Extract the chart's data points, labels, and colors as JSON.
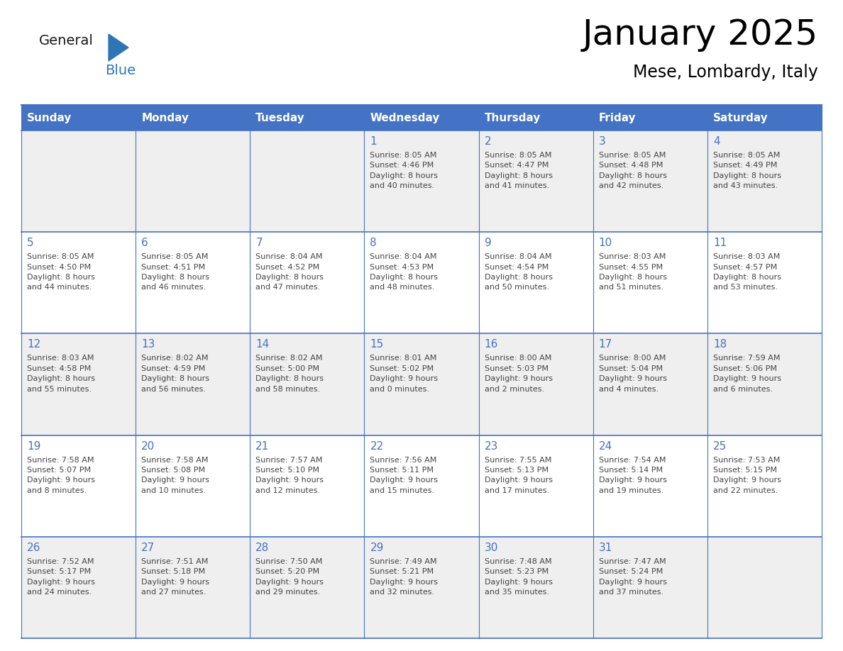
{
  "title": "January 2025",
  "subtitle": "Mese, Lombardy, Italy",
  "days_of_week": [
    "Sunday",
    "Monday",
    "Tuesday",
    "Wednesday",
    "Thursday",
    "Friday",
    "Saturday"
  ],
  "header_bg": "#4472C4",
  "header_text": "#FFFFFF",
  "row_bg_light": "#EFEFEF",
  "row_bg_white": "#FFFFFF",
  "border_color": "#4472C4",
  "day_number_color": "#4472C4",
  "text_color": "#444444",
  "logo_general_color": "#1a1a1a",
  "logo_blue_color": "#2E75B6",
  "weeks": [
    [
      {
        "day": null,
        "text": ""
      },
      {
        "day": null,
        "text": ""
      },
      {
        "day": null,
        "text": ""
      },
      {
        "day": 1,
        "text": "Sunrise: 8:05 AM\nSunset: 4:46 PM\nDaylight: 8 hours\nand 40 minutes."
      },
      {
        "day": 2,
        "text": "Sunrise: 8:05 AM\nSunset: 4:47 PM\nDaylight: 8 hours\nand 41 minutes."
      },
      {
        "day": 3,
        "text": "Sunrise: 8:05 AM\nSunset: 4:48 PM\nDaylight: 8 hours\nand 42 minutes."
      },
      {
        "day": 4,
        "text": "Sunrise: 8:05 AM\nSunset: 4:49 PM\nDaylight: 8 hours\nand 43 minutes."
      }
    ],
    [
      {
        "day": 5,
        "text": "Sunrise: 8:05 AM\nSunset: 4:50 PM\nDaylight: 8 hours\nand 44 minutes."
      },
      {
        "day": 6,
        "text": "Sunrise: 8:05 AM\nSunset: 4:51 PM\nDaylight: 8 hours\nand 46 minutes."
      },
      {
        "day": 7,
        "text": "Sunrise: 8:04 AM\nSunset: 4:52 PM\nDaylight: 8 hours\nand 47 minutes."
      },
      {
        "day": 8,
        "text": "Sunrise: 8:04 AM\nSunset: 4:53 PM\nDaylight: 8 hours\nand 48 minutes."
      },
      {
        "day": 9,
        "text": "Sunrise: 8:04 AM\nSunset: 4:54 PM\nDaylight: 8 hours\nand 50 minutes."
      },
      {
        "day": 10,
        "text": "Sunrise: 8:03 AM\nSunset: 4:55 PM\nDaylight: 8 hours\nand 51 minutes."
      },
      {
        "day": 11,
        "text": "Sunrise: 8:03 AM\nSunset: 4:57 PM\nDaylight: 8 hours\nand 53 minutes."
      }
    ],
    [
      {
        "day": 12,
        "text": "Sunrise: 8:03 AM\nSunset: 4:58 PM\nDaylight: 8 hours\nand 55 minutes."
      },
      {
        "day": 13,
        "text": "Sunrise: 8:02 AM\nSunset: 4:59 PM\nDaylight: 8 hours\nand 56 minutes."
      },
      {
        "day": 14,
        "text": "Sunrise: 8:02 AM\nSunset: 5:00 PM\nDaylight: 8 hours\nand 58 minutes."
      },
      {
        "day": 15,
        "text": "Sunrise: 8:01 AM\nSunset: 5:02 PM\nDaylight: 9 hours\nand 0 minutes."
      },
      {
        "day": 16,
        "text": "Sunrise: 8:00 AM\nSunset: 5:03 PM\nDaylight: 9 hours\nand 2 minutes."
      },
      {
        "day": 17,
        "text": "Sunrise: 8:00 AM\nSunset: 5:04 PM\nDaylight: 9 hours\nand 4 minutes."
      },
      {
        "day": 18,
        "text": "Sunrise: 7:59 AM\nSunset: 5:06 PM\nDaylight: 9 hours\nand 6 minutes."
      }
    ],
    [
      {
        "day": 19,
        "text": "Sunrise: 7:58 AM\nSunset: 5:07 PM\nDaylight: 9 hours\nand 8 minutes."
      },
      {
        "day": 20,
        "text": "Sunrise: 7:58 AM\nSunset: 5:08 PM\nDaylight: 9 hours\nand 10 minutes."
      },
      {
        "day": 21,
        "text": "Sunrise: 7:57 AM\nSunset: 5:10 PM\nDaylight: 9 hours\nand 12 minutes."
      },
      {
        "day": 22,
        "text": "Sunrise: 7:56 AM\nSunset: 5:11 PM\nDaylight: 9 hours\nand 15 minutes."
      },
      {
        "day": 23,
        "text": "Sunrise: 7:55 AM\nSunset: 5:13 PM\nDaylight: 9 hours\nand 17 minutes."
      },
      {
        "day": 24,
        "text": "Sunrise: 7:54 AM\nSunset: 5:14 PM\nDaylight: 9 hours\nand 19 minutes."
      },
      {
        "day": 25,
        "text": "Sunrise: 7:53 AM\nSunset: 5:15 PM\nDaylight: 9 hours\nand 22 minutes."
      }
    ],
    [
      {
        "day": 26,
        "text": "Sunrise: 7:52 AM\nSunset: 5:17 PM\nDaylight: 9 hours\nand 24 minutes."
      },
      {
        "day": 27,
        "text": "Sunrise: 7:51 AM\nSunset: 5:18 PM\nDaylight: 9 hours\nand 27 minutes."
      },
      {
        "day": 28,
        "text": "Sunrise: 7:50 AM\nSunset: 5:20 PM\nDaylight: 9 hours\nand 29 minutes."
      },
      {
        "day": 29,
        "text": "Sunrise: 7:49 AM\nSunset: 5:21 PM\nDaylight: 9 hours\nand 32 minutes."
      },
      {
        "day": 30,
        "text": "Sunrise: 7:48 AM\nSunset: 5:23 PM\nDaylight: 9 hours\nand 35 minutes."
      },
      {
        "day": 31,
        "text": "Sunrise: 7:47 AM\nSunset: 5:24 PM\nDaylight: 9 hours\nand 37 minutes."
      },
      {
        "day": null,
        "text": ""
      }
    ]
  ]
}
